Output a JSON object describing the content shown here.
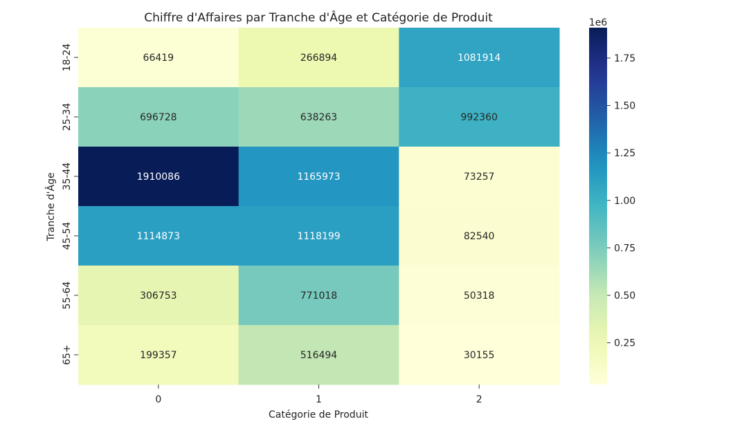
{
  "chart_data": {
    "type": "heatmap",
    "title": "Chiffre d'Affaires par Tranche d'Âge et Catégorie de Produit",
    "xlabel": "Catégorie de Produit",
    "ylabel": "Tranche d'Âge",
    "x_categories": [
      "0",
      "1",
      "2"
    ],
    "y_categories": [
      "18-24",
      "25-34",
      "35-44",
      "45-54",
      "55-64",
      "65+"
    ],
    "values": [
      [
        66419,
        266894,
        1081914
      ],
      [
        696728,
        638263,
        992360
      ],
      [
        1910086,
        1165973,
        73257
      ],
      [
        1114873,
        1118199,
        82540
      ],
      [
        306753,
        771018,
        50318
      ],
      [
        199357,
        516494,
        30155
      ]
    ],
    "colormap": "YlGnBu",
    "vmin": 30155,
    "vmax": 1910086,
    "colorbar": {
      "exponent_label": "1e6",
      "ticks": [
        0.25,
        0.5,
        0.75,
        1.0,
        1.25,
        1.5,
        1.75
      ],
      "tick_labels": [
        "0.25",
        "0.50",
        "0.75",
        "1.00",
        "1.25",
        "1.50",
        "1.75"
      ]
    },
    "annotations": true,
    "grid": false
  }
}
